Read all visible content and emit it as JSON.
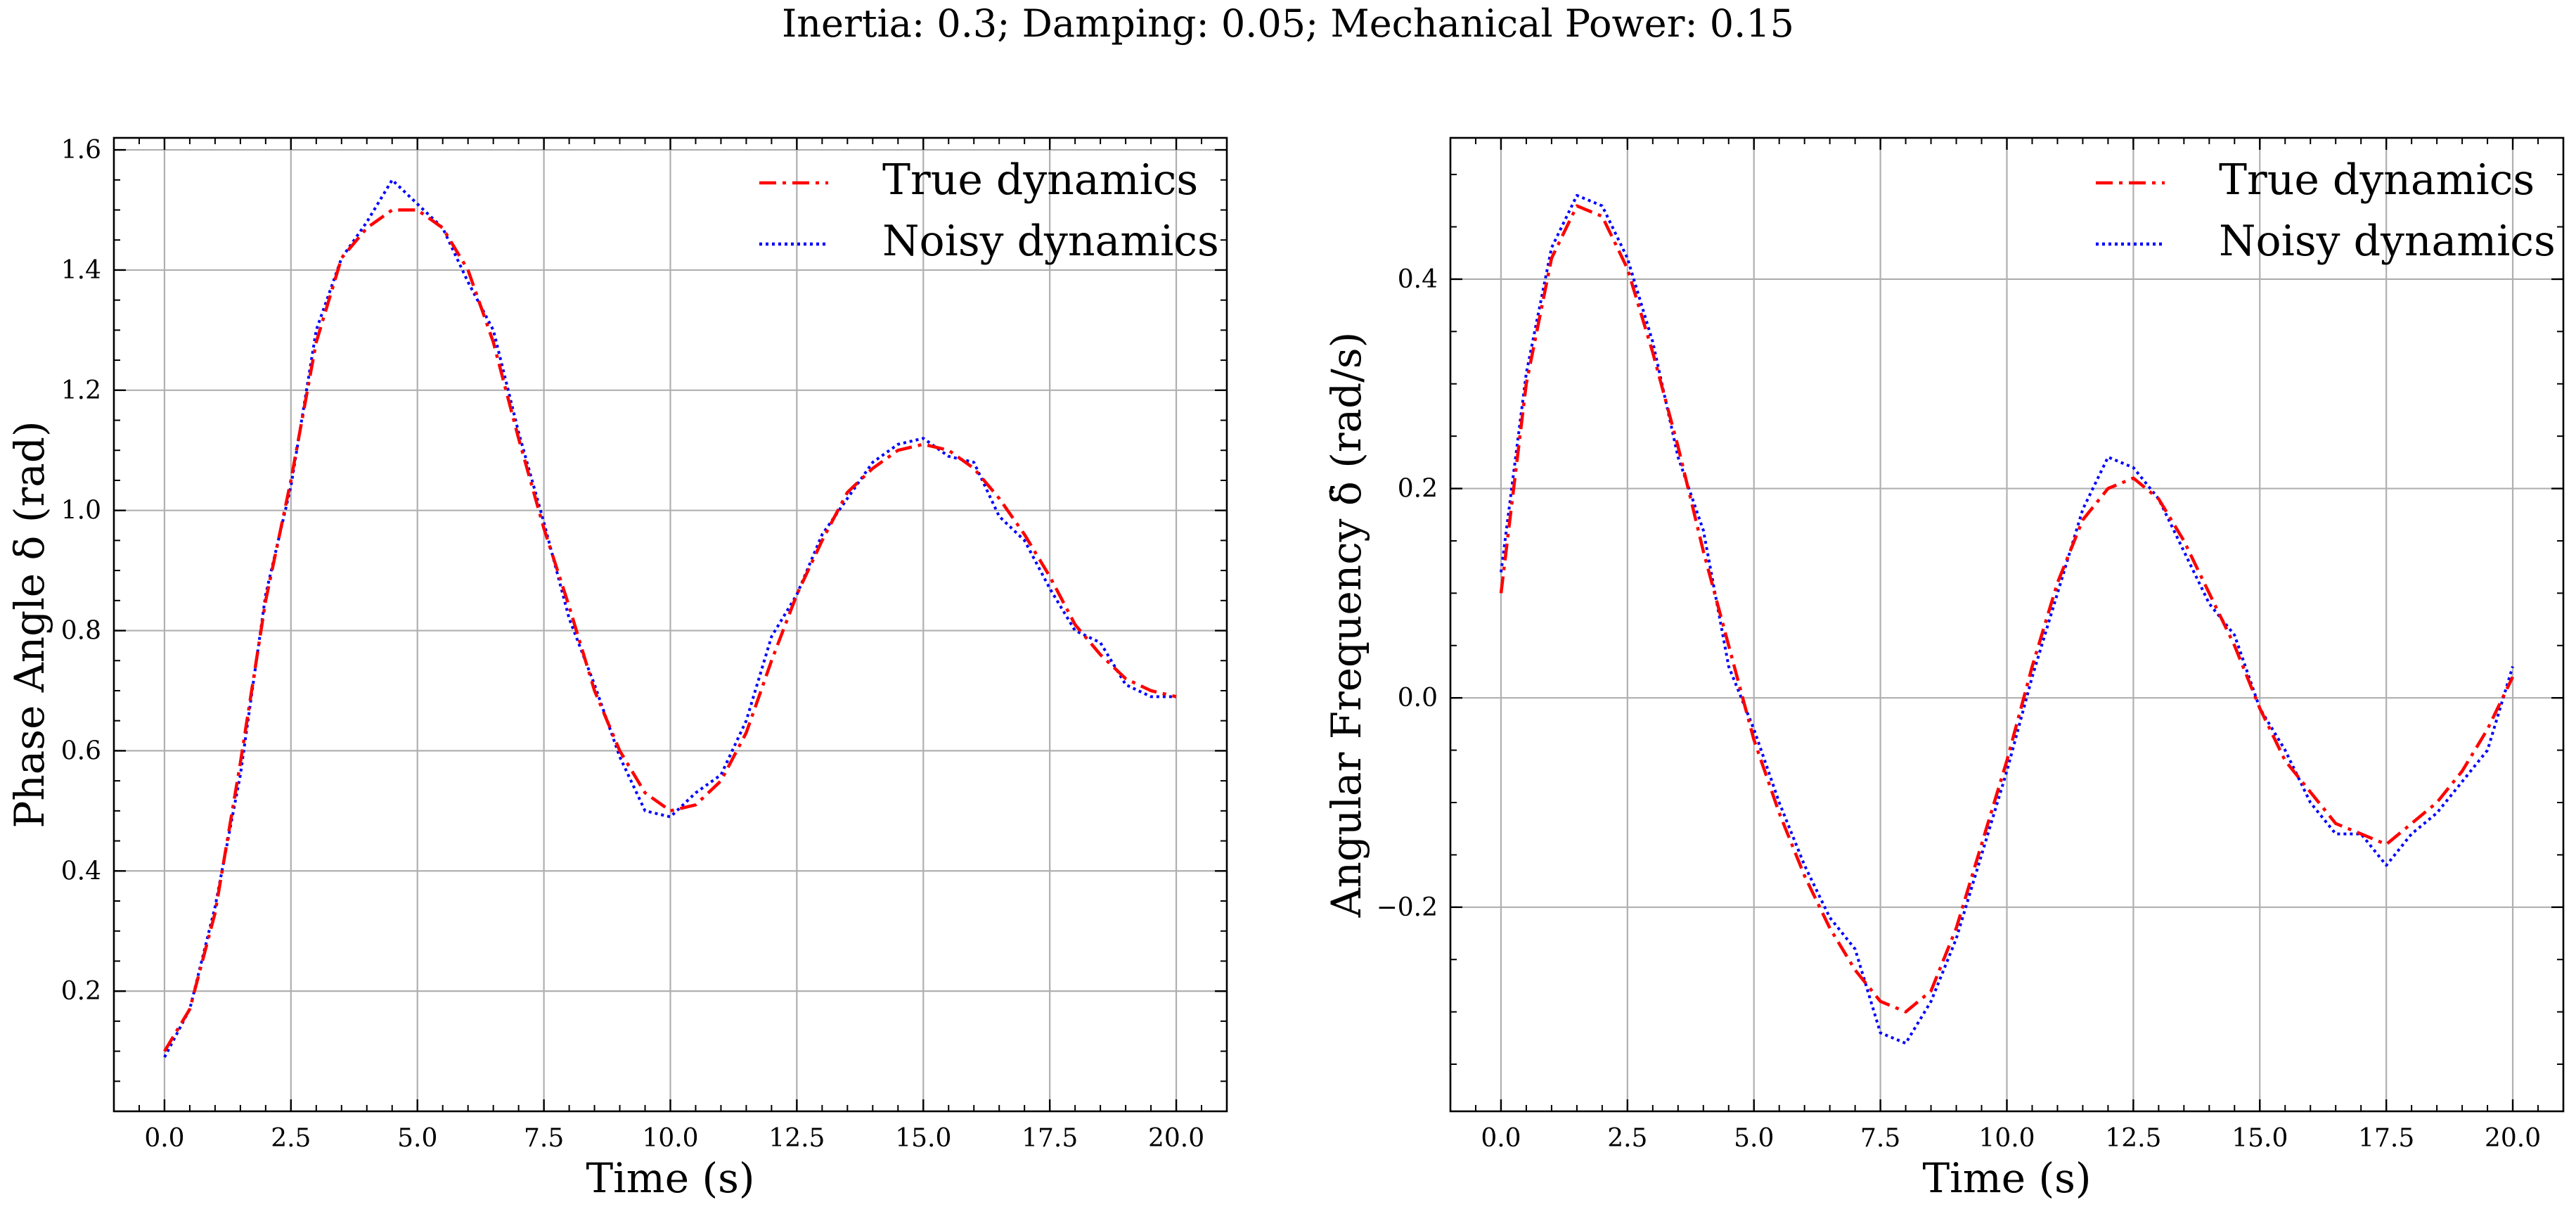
{
  "figure": {
    "suptitle": "Inertia: 0.3; Damping: 0.05; Mechanical Power: 0.15"
  },
  "chart_data": [
    {
      "type": "line",
      "xlabel": "Time (s)",
      "ylabel": "Phase Angle δ (rad)",
      "xlim": [
        -1.0,
        21.0
      ],
      "ylim": [
        0.0,
        1.62
      ],
      "xticks": [
        0,
        2.5,
        5,
        7.5,
        10,
        12.5,
        15,
        17.5,
        20
      ],
      "xtick_labels": [
        "0.0",
        "2.5",
        "5.0",
        "7.5",
        "10.0",
        "12.5",
        "15.0",
        "17.5",
        "20.0"
      ],
      "yticks": [
        0.2,
        0.4,
        0.6,
        0.8,
        1.0,
        1.2,
        1.4,
        1.6
      ],
      "ytick_labels": [
        "0.2",
        "0.4",
        "0.6",
        "0.8",
        "1.0",
        "1.2",
        "1.4",
        "1.6"
      ],
      "grid": true,
      "legend": "top-right",
      "x": [
        0.0,
        0.5,
        1.0,
        1.5,
        2.0,
        2.5,
        3.0,
        3.5,
        4.0,
        4.5,
        5.0,
        5.5,
        6.0,
        6.5,
        7.0,
        7.5,
        8.0,
        8.5,
        9.0,
        9.5,
        10.0,
        10.5,
        11.0,
        11.5,
        12.0,
        12.5,
        13.0,
        13.5,
        14.0,
        14.5,
        15.0,
        15.5,
        16.0,
        16.5,
        17.0,
        17.5,
        18.0,
        18.5,
        19.0,
        19.5,
        20.0
      ],
      "series": [
        {
          "name": "True dynamics",
          "color": "#ff0000",
          "linestyle": "dashdot",
          "values": [
            0.1,
            0.17,
            0.33,
            0.58,
            0.85,
            1.05,
            1.28,
            1.42,
            1.47,
            1.5,
            1.5,
            1.47,
            1.4,
            1.28,
            1.12,
            0.97,
            0.84,
            0.7,
            0.6,
            0.53,
            0.5,
            0.51,
            0.55,
            0.63,
            0.75,
            0.86,
            0.95,
            1.03,
            1.07,
            1.1,
            1.11,
            1.1,
            1.07,
            1.02,
            0.96,
            0.89,
            0.81,
            0.76,
            0.72,
            0.7,
            0.69
          ]
        },
        {
          "name": "Noisy dynamics",
          "color": "#0000ff",
          "linestyle": "dotted",
          "values": [
            0.09,
            0.17,
            0.34,
            0.56,
            0.86,
            1.04,
            1.3,
            1.42,
            1.48,
            1.55,
            1.51,
            1.47,
            1.38,
            1.3,
            1.13,
            0.98,
            0.82,
            0.71,
            0.59,
            0.5,
            0.49,
            0.53,
            0.56,
            0.65,
            0.79,
            0.86,
            0.96,
            1.02,
            1.08,
            1.11,
            1.12,
            1.09,
            1.08,
            0.99,
            0.95,
            0.87,
            0.8,
            0.78,
            0.71,
            0.69,
            0.69
          ]
        }
      ]
    },
    {
      "type": "line",
      "xlabel": "Time (s)",
      "ylabel": "Angular Frequency δ̇ (rad/s)",
      "xlim": [
        -1.0,
        21.0
      ],
      "ylim": [
        -0.395,
        0.535
      ],
      "xticks": [
        0,
        2.5,
        5,
        7.5,
        10,
        12.5,
        15,
        17.5,
        20
      ],
      "xtick_labels": [
        "0.0",
        "2.5",
        "5.0",
        "7.5",
        "10.0",
        "12.5",
        "15.0",
        "17.5",
        "20.0"
      ],
      "yticks": [
        -0.2,
        0.0,
        0.2,
        0.4
      ],
      "ytick_labels": [
        "−0.2",
        "0.0",
        "0.2",
        "0.4"
      ],
      "grid": true,
      "legend": "top-right",
      "x": [
        0.0,
        0.5,
        1.0,
        1.5,
        2.0,
        2.5,
        3.0,
        3.5,
        4.0,
        4.5,
        5.0,
        5.5,
        6.0,
        6.5,
        7.0,
        7.5,
        8.0,
        8.5,
        9.0,
        9.5,
        10.0,
        10.5,
        11.0,
        11.5,
        12.0,
        12.5,
        13.0,
        13.5,
        14.0,
        14.5,
        15.0,
        15.5,
        16.0,
        16.5,
        17.0,
        17.5,
        18.0,
        18.5,
        19.0,
        19.5,
        20.0
      ],
      "series": [
        {
          "name": "True dynamics",
          "color": "#ff0000",
          "linestyle": "dashdot",
          "values": [
            0.1,
            0.3,
            0.42,
            0.47,
            0.46,
            0.41,
            0.33,
            0.24,
            0.14,
            0.05,
            -0.04,
            -0.11,
            -0.17,
            -0.22,
            -0.26,
            -0.29,
            -0.3,
            -0.28,
            -0.22,
            -0.14,
            -0.06,
            0.03,
            0.11,
            0.17,
            0.2,
            0.21,
            0.19,
            0.15,
            0.1,
            0.05,
            -0.01,
            -0.06,
            -0.09,
            -0.12,
            -0.13,
            -0.14,
            -0.12,
            -0.1,
            -0.07,
            -0.03,
            0.02
          ]
        },
        {
          "name": "Noisy dynamics",
          "color": "#0000ff",
          "linestyle": "dotted",
          "values": [
            0.12,
            0.31,
            0.43,
            0.48,
            0.47,
            0.42,
            0.34,
            0.23,
            0.16,
            0.03,
            -0.03,
            -0.1,
            -0.16,
            -0.21,
            -0.24,
            -0.32,
            -0.33,
            -0.29,
            -0.23,
            -0.15,
            -0.07,
            0.02,
            0.1,
            0.18,
            0.23,
            0.22,
            0.19,
            0.14,
            0.09,
            0.06,
            -0.01,
            -0.05,
            -0.1,
            -0.13,
            -0.13,
            -0.16,
            -0.13,
            -0.11,
            -0.08,
            -0.05,
            0.03
          ]
        }
      ]
    }
  ]
}
